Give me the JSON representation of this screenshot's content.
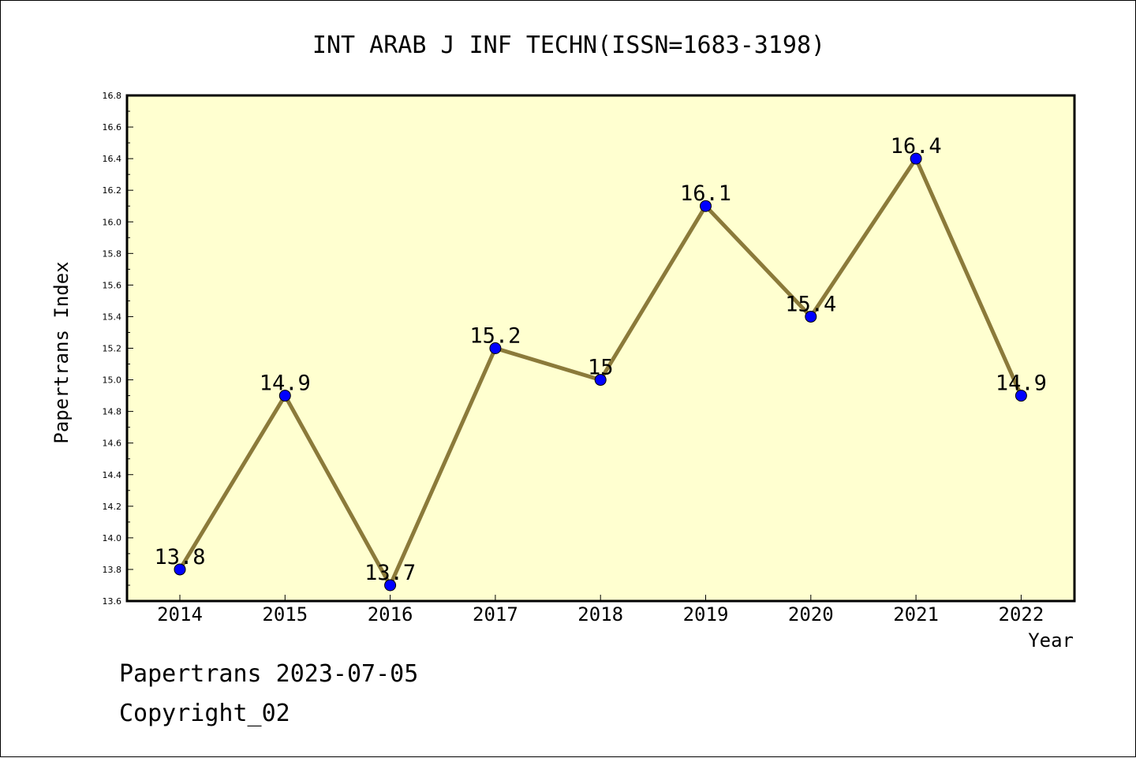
{
  "chart_data": {
    "type": "line",
    "title": "INT ARAB J INF TECHN(ISSN=1683-3198)",
    "xlabel": "Year",
    "ylabel": "Papertrans Index",
    "categories": [
      "2014",
      "2015",
      "2016",
      "2017",
      "2018",
      "2019",
      "2020",
      "2021",
      "2022"
    ],
    "series": [
      {
        "values": [
          13.8,
          14.9,
          13.7,
          15.2,
          15.0,
          16.1,
          15.4,
          16.4,
          14.9
        ],
        "labels": [
          "13.8",
          "14.9",
          "13.7",
          "15.2",
          "15",
          "16.1",
          "15.4",
          "16.4",
          "14.9"
        ]
      }
    ],
    "ylim": [
      13.6,
      16.8
    ],
    "yticks": [
      "13.6",
      "13.8",
      "14.0",
      "14.2",
      "14.4",
      "14.6",
      "14.8",
      "15.0",
      "15.2",
      "15.4",
      "15.6",
      "15.8",
      "16.0",
      "16.2",
      "16.4",
      "16.6",
      "16.8"
    ],
    "grid": false,
    "legend": "none",
    "colors": {
      "plot_background": "#ffffd0",
      "line": "#8b7a3a",
      "marker": "#0000ff"
    }
  },
  "footer": {
    "date_text": "Papertrans 2023-07-05",
    "copyright_text": "Copyright_02"
  }
}
